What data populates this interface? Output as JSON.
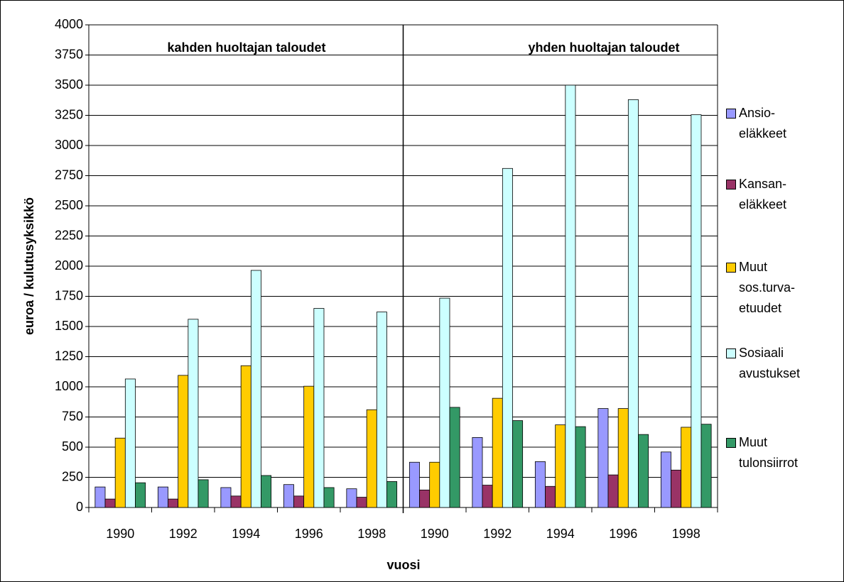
{
  "chart_data": {
    "type": "bar",
    "y_label": "euroa / kulutusyksikkö",
    "x_label": "vuosi",
    "annotations": [
      "kahden huoltajan taloudet",
      "yhden huoltajan taloudet"
    ],
    "categories": [
      "1990",
      "1992",
      "1994",
      "1996",
      "1998",
      "1990",
      "1992",
      "1994",
      "1996",
      "1998"
    ],
    "series": [
      {
        "name": "Ansio-\neläkkeet",
        "color": "#9999ff",
        "values": [
          170,
          170,
          165,
          190,
          155,
          375,
          580,
          380,
          820,
          460
        ]
      },
      {
        "name": "Kansan-\neläkkeet",
        "color": "#993366",
        "values": [
          70,
          70,
          95,
          95,
          85,
          145,
          185,
          175,
          270,
          310
        ]
      },
      {
        "name": "Muut\nsos.turva-\netuudet",
        "color": "#ffcc00",
        "values": [
          575,
          1095,
          1175,
          1005,
          810,
          375,
          905,
          685,
          820,
          665
        ]
      },
      {
        "name": "Sosiaali\navustukset",
        "color": "#ccffff",
        "values": [
          1065,
          1560,
          1965,
          1650,
          1620,
          1735,
          2810,
          3500,
          3380,
          3255
        ]
      },
      {
        "name": "Muut\ntulonsiirrot",
        "color": "#339966",
        "values": [
          205,
          230,
          265,
          165,
          215,
          830,
          720,
          670,
          605,
          690
        ]
      }
    ],
    "ylim": [
      0,
      4000
    ],
    "yticks": [
      0,
      250,
      500,
      750,
      1000,
      1250,
      1500,
      1750,
      2000,
      2250,
      2500,
      2750,
      3000,
      3250,
      3500,
      3750,
      4000
    ],
    "grid": true
  }
}
